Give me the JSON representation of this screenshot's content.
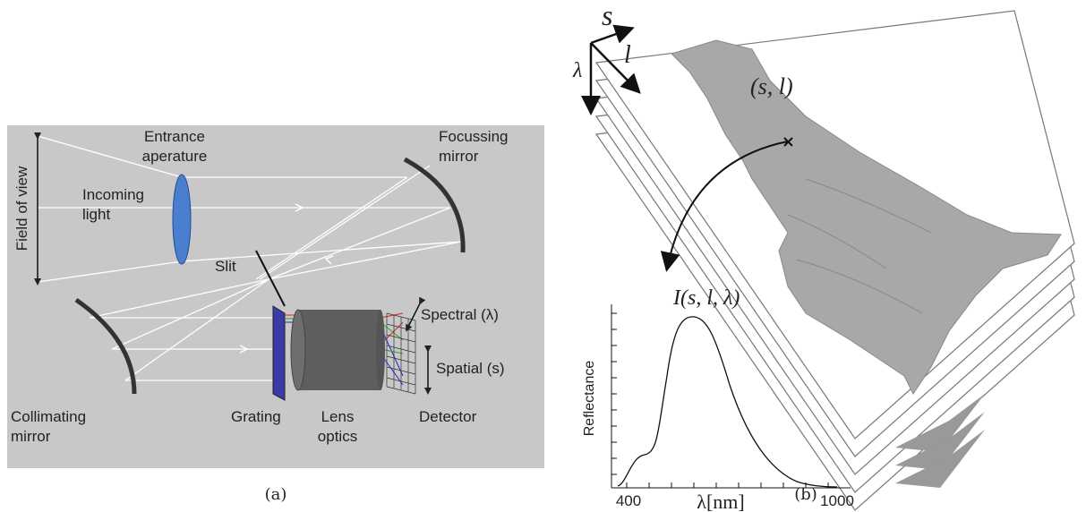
{
  "panel_a": {
    "field_of_view": "Field of view",
    "entrance_aperture": [
      "Entrance",
      "aperature"
    ],
    "incoming_light": [
      "Incoming",
      "light"
    ],
    "focussing_mirror": [
      "Focussing",
      "mirror"
    ],
    "slit": "Slit",
    "spectral": "Spectral (λ)",
    "spatial": "Spatial (s)",
    "collimating_mirror": [
      "Collimating",
      "mirror"
    ],
    "grating": "Grating",
    "lens_optics": [
      "Lens",
      "optics"
    ],
    "detector": "Detector",
    "caption": "(a)"
  },
  "panel_b": {
    "axis_s": "s",
    "axis_l": "l",
    "axis_lambda": "λ",
    "point": "(s, l)",
    "spectrum_title": "I(s, l, λ)",
    "y_label": "Reflectance",
    "x_min_label": "400",
    "x_label": "λ[nm]",
    "x_max_label": "1000",
    "caption": "(b)"
  }
}
